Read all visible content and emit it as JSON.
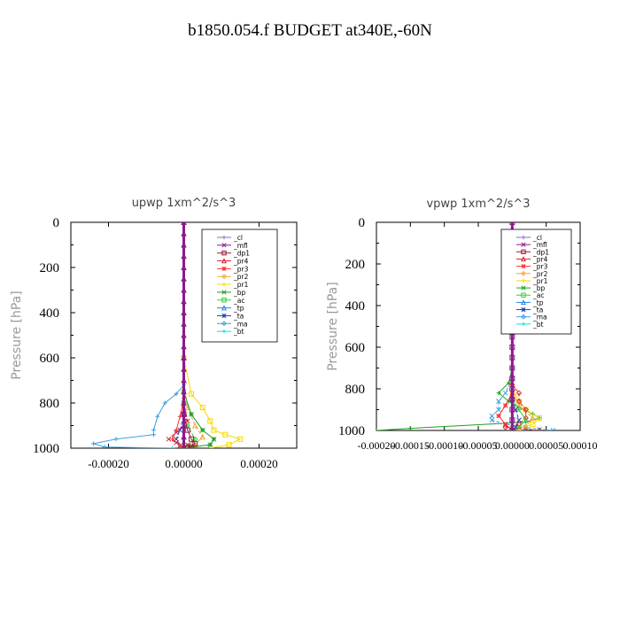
{
  "figure_title": "b1850.054.f  BUDGET at340E,-60N",
  "legend_items": [
    {
      "label": "_cl",
      "color": "#8e6bbf"
    },
    {
      "label": "_mfl",
      "color": "#8b1a8b"
    },
    {
      "label": "_dp1",
      "color": "#a0143c"
    },
    {
      "label": "_pr4",
      "color": "#d9262e"
    },
    {
      "label": "_pr3",
      "color": "#ff3030"
    },
    {
      "label": "_pr2",
      "color": "#f2a53a"
    },
    {
      "label": "_pr1",
      "color": "#f5d800"
    },
    {
      "label": "_bp",
      "color": "#1f9e1f"
    },
    {
      "label": "_ac",
      "color": "#33cc33"
    },
    {
      "label": "_tp",
      "color": "#1e88e5"
    },
    {
      "label": "_ta",
      "color": "#2a3fb0"
    },
    {
      "label": "_ma",
      "color": "#3aa0e0"
    },
    {
      "label": "_bt",
      "color": "#00e5e5"
    }
  ],
  "chart_data": [
    {
      "type": "line",
      "title": "upwp   1xm^2/s^3",
      "ylabel": "Pressure  [hPa]",
      "xlabel": "",
      "xlim": [
        -0.0003,
        0.0003
      ],
      "ylim": [
        0,
        1000
      ],
      "y_inverted": true,
      "xticks": [
        -0.0002,
        0,
        0.0002
      ],
      "xtick_labels": [
        "-0.00020",
        "0.00000",
        "0.00020"
      ],
      "yticks": [
        0,
        200,
        400,
        600,
        800,
        1000
      ],
      "ytick_labels": [
        "0",
        "200",
        "400",
        "600",
        "800",
        "1000"
      ],
      "legend_position": "top-right",
      "series": [
        {
          "name": "_tp",
          "color": "#3aa0e0",
          "x": [
            0,
            0,
            -2e-05,
            -5e-05,
            -7e-05,
            -8e-05,
            -8e-05,
            -0.00018,
            -0.00024,
            -0.00021,
            -3e-05
          ],
          "y": [
            600,
            720,
            760,
            800,
            860,
            920,
            940,
            960,
            980,
            995,
            1000
          ]
        },
        {
          "name": "_ta",
          "color": "#2a3fb0",
          "x": [
            0,
            0,
            -1e-05,
            -2e-05,
            -1e-05,
            0
          ],
          "y": [
            600,
            850,
            920,
            960,
            990,
            1000
          ]
        },
        {
          "name": "_pr1",
          "color": "#f5d800",
          "x": [
            0,
            2e-05,
            5e-05,
            7e-05,
            8e-05,
            0.00011,
            0.00015,
            0.00012,
            7e-05
          ],
          "y": [
            600,
            760,
            820,
            880,
            920,
            940,
            960,
            985,
            1000
          ]
        },
        {
          "name": "_pr2",
          "color": "#f2a53a",
          "x": [
            0,
            1e-05,
            3e-05,
            5e-05,
            3e-05,
            1e-05
          ],
          "y": [
            700,
            820,
            900,
            950,
            985,
            1000
          ]
        },
        {
          "name": "_bp",
          "color": "#1f9e1f",
          "x": [
            0,
            2e-05,
            5e-05,
            8e-05,
            7e-05,
            2e-05,
            0
          ],
          "y": [
            750,
            850,
            920,
            960,
            985,
            995,
            1000
          ]
        },
        {
          "name": "_ac",
          "color": "#33cc33",
          "x": [
            0,
            1e-05,
            3e-05,
            1e-05,
            0
          ],
          "y": [
            800,
            900,
            960,
            990,
            1000
          ]
        },
        {
          "name": "_pr3",
          "color": "#ff3030",
          "x": [
            0,
            -1e-05,
            -2e-05,
            -3e-05,
            -1e-05,
            0
          ],
          "y": [
            780,
            860,
            920,
            960,
            990,
            1000
          ]
        },
        {
          "name": "_pr4",
          "color": "#d9262e",
          "x": [
            0,
            1e-05,
            -2e-05,
            -4e-05,
            -2e-05,
            1e-05,
            2e-05,
            0
          ],
          "y": [
            800,
            880,
            930,
            960,
            975,
            985,
            995,
            1000
          ]
        },
        {
          "name": "_dp1",
          "color": "#a0143c",
          "x": [
            0,
            1e-05,
            2e-05,
            3e-05,
            2e-05,
            1e-05
          ],
          "y": [
            850,
            920,
            960,
            980,
            995,
            1000
          ]
        },
        {
          "name": "_mfl",
          "color": "#8b1a8b",
          "x": [
            0,
            0,
            0,
            0,
            0,
            0,
            0,
            0,
            0,
            0,
            0,
            0,
            0,
            0,
            0,
            0,
            0,
            0,
            0,
            0,
            0
          ],
          "y": [
            0,
            50,
            100,
            150,
            200,
            250,
            300,
            350,
            400,
            450,
            500,
            550,
            600,
            650,
            700,
            750,
            800,
            850,
            900,
            950,
            1000
          ]
        }
      ]
    },
    {
      "type": "line",
      "title": "vpwp   1xm^2/s^3",
      "ylabel": "Pressure  [hPa]",
      "xlabel": "",
      "xlim": [
        -0.0002,
        0.0001
      ],
      "ylim": [
        0,
        1000
      ],
      "y_inverted": true,
      "xticks": [
        -0.0002,
        -0.00015,
        -0.0001,
        -5e-05,
        0,
        5e-05,
        0.0001
      ],
      "xtick_labels": [
        "-0.00020",
        "-0.00015",
        "-0.00010",
        "-0.00005",
        "0.00000",
        "0.00005",
        "0.00010"
      ],
      "yticks": [
        0,
        200,
        400,
        600,
        800,
        1000
      ],
      "ytick_labels": [
        "0",
        "200",
        "400",
        "600",
        "800",
        "1000"
      ],
      "legend_position": "top-right",
      "series": [
        {
          "name": "_bp",
          "color": "#1f9e1f",
          "x": [
            0,
            -5e-06,
            -2e-05,
            -5e-06,
            1e-05,
            3e-05,
            4e-05,
            2e-05,
            -0.00015,
            -0.0002
          ],
          "y": [
            700,
            770,
            820,
            860,
            890,
            920,
            940,
            960,
            990,
            1000
          ]
        },
        {
          "name": "_tp",
          "color": "#3aa0e0",
          "x": [
            0,
            -1e-05,
            -2e-05,
            -2e-05,
            -3e-05,
            -3e-05,
            -1e-05,
            2e-05,
            4e-05,
            6e-05
          ],
          "y": [
            750,
            820,
            860,
            900,
            930,
            950,
            970,
            985,
            995,
            1000
          ]
        },
        {
          "name": "_pr1",
          "color": "#f5d800",
          "x": [
            0,
            1e-05,
            2e-05,
            4e-05,
            3e-05,
            1e-05,
            0
          ],
          "y": [
            800,
            860,
            900,
            940,
            970,
            990,
            1000
          ]
        },
        {
          "name": "_pr2",
          "color": "#f2a53a",
          "x": [
            0,
            1e-05,
            3e-05,
            2e-05,
            0
          ],
          "y": [
            820,
            880,
            940,
            980,
            1000
          ]
        },
        {
          "name": "_pr3",
          "color": "#ff3030",
          "x": [
            0,
            -1e-05,
            -2e-05,
            -1e-05,
            0
          ],
          "y": [
            820,
            880,
            930,
            970,
            1000
          ]
        },
        {
          "name": "_pr4",
          "color": "#d9262e",
          "x": [
            0,
            1e-05,
            1e-05,
            2e-05,
            2e-05,
            1e-05,
            -1e-05,
            4e-05
          ],
          "y": [
            780,
            820,
            860,
            900,
            940,
            970,
            985,
            1000
          ]
        },
        {
          "name": "_ac",
          "color": "#33cc33",
          "x": [
            0,
            1e-05,
            2e-05,
            1e-05,
            0
          ],
          "y": [
            850,
            900,
            950,
            985,
            1000
          ]
        },
        {
          "name": "_ta",
          "color": "#2a3fb0",
          "x": [
            0,
            5e-06,
            1e-05,
            5e-06,
            0
          ],
          "y": [
            850,
            900,
            950,
            985,
            1000
          ]
        },
        {
          "name": "_mfl",
          "color": "#8b1a8b",
          "x": [
            0,
            0,
            0,
            0,
            0,
            0,
            0,
            0,
            0,
            0,
            0,
            0,
            0,
            0,
            0,
            0,
            0,
            0,
            0,
            0,
            0
          ],
          "y": [
            0,
            50,
            100,
            150,
            200,
            250,
            300,
            350,
            400,
            450,
            500,
            550,
            600,
            650,
            700,
            750,
            800,
            850,
            900,
            950,
            1000
          ]
        }
      ]
    }
  ]
}
